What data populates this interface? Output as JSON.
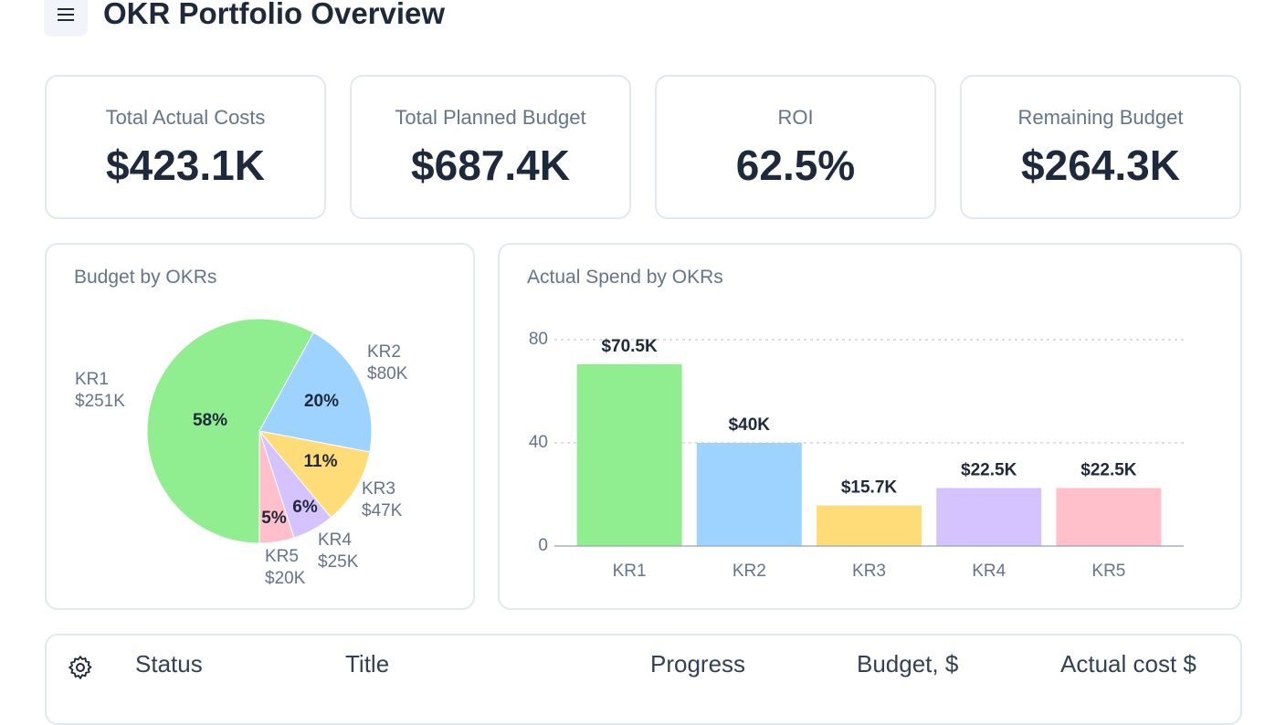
{
  "header": {
    "title": "OKR Portfolio Overview"
  },
  "kpis": [
    {
      "label": "Total Actual Costs",
      "value": "$423.1K"
    },
    {
      "label": "Total Planned Budget",
      "value": "$687.4K"
    },
    {
      "label": "ROI",
      "value": "62.5%"
    },
    {
      "label": "Remaining Budget",
      "value": "$264.3K"
    }
  ],
  "chart_data": [
    {
      "type": "pie",
      "title": "Budget by OKRs",
      "categories": [
        "KR1",
        "KR2",
        "KR3",
        "KR4",
        "KR5"
      ],
      "values": [
        58,
        20,
        11,
        6,
        5
      ],
      "value_labels": [
        "58%",
        "20%",
        "11%",
        "6%",
        "5%"
      ],
      "amount_labels": [
        "$251K",
        "$80K",
        "$47K",
        "$25K",
        "$20K"
      ],
      "colors": [
        "#90ee90",
        "#9fd3ff",
        "#ffdc78",
        "#d4c3ff",
        "#ffc0cb"
      ]
    },
    {
      "type": "bar",
      "title": "Actual Spend by OKRs",
      "categories": [
        "KR1",
        "KR2",
        "KR3",
        "KR4",
        "KR5"
      ],
      "values": [
        70.5,
        40,
        15.7,
        22.5,
        22.5
      ],
      "value_labels": [
        "$70.5K",
        "$40K",
        "$15.7K",
        "$22.5K",
        "$22.5K"
      ],
      "colors": [
        "#90ee90",
        "#9fd3ff",
        "#ffdc78",
        "#d4c3ff",
        "#ffc0cb"
      ],
      "ylim": [
        0,
        80
      ],
      "yticks": [
        0,
        40,
        80
      ],
      "grid": true
    }
  ],
  "table": {
    "columns": [
      "Status",
      "Title",
      "Progress",
      "Budget, $",
      "Actual cost $"
    ]
  }
}
